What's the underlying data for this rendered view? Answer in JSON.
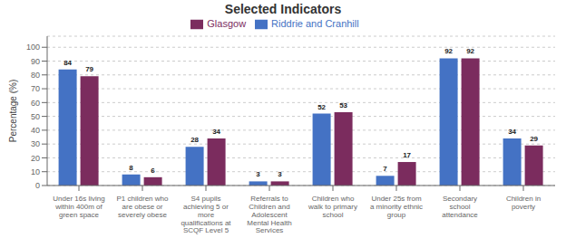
{
  "chart_data": {
    "type": "bar",
    "title": "Selected Indicators",
    "categories": [
      "Under 16s living\nwithin 400m of\ngreen space",
      "P1 children who\nare obese or\nseverely obese",
      "S4 pupils\nachieving 5 or\nmore\nqualifications at\nSCQF Level 5",
      "Referrals to\nChildren and\nAdolescent\nMental Health\nServices",
      "Children who\nwalk to primary\nschool",
      "Under 25s from\na minority ethnic\ngroup",
      "Secondary\nschool\nattendance",
      "Children in\npoverty"
    ],
    "series": [
      {
        "name": "Riddrie and Cranhill",
        "color": "#4472C4",
        "values": [
          84,
          8,
          28,
          3,
          52,
          7,
          92,
          34
        ]
      },
      {
        "name": "Glasgow",
        "color": "#7B2C5E",
        "values": [
          79,
          6,
          34,
          3,
          53,
          17,
          92,
          29
        ]
      }
    ],
    "ylabel": "Percentage (%)",
    "ylim": [
      0,
      108
    ],
    "yticks": [
      0,
      10,
      20,
      30,
      40,
      50,
      60,
      70,
      80,
      90,
      100
    ],
    "grid": true,
    "legend": "top",
    "data_labels": true
  }
}
